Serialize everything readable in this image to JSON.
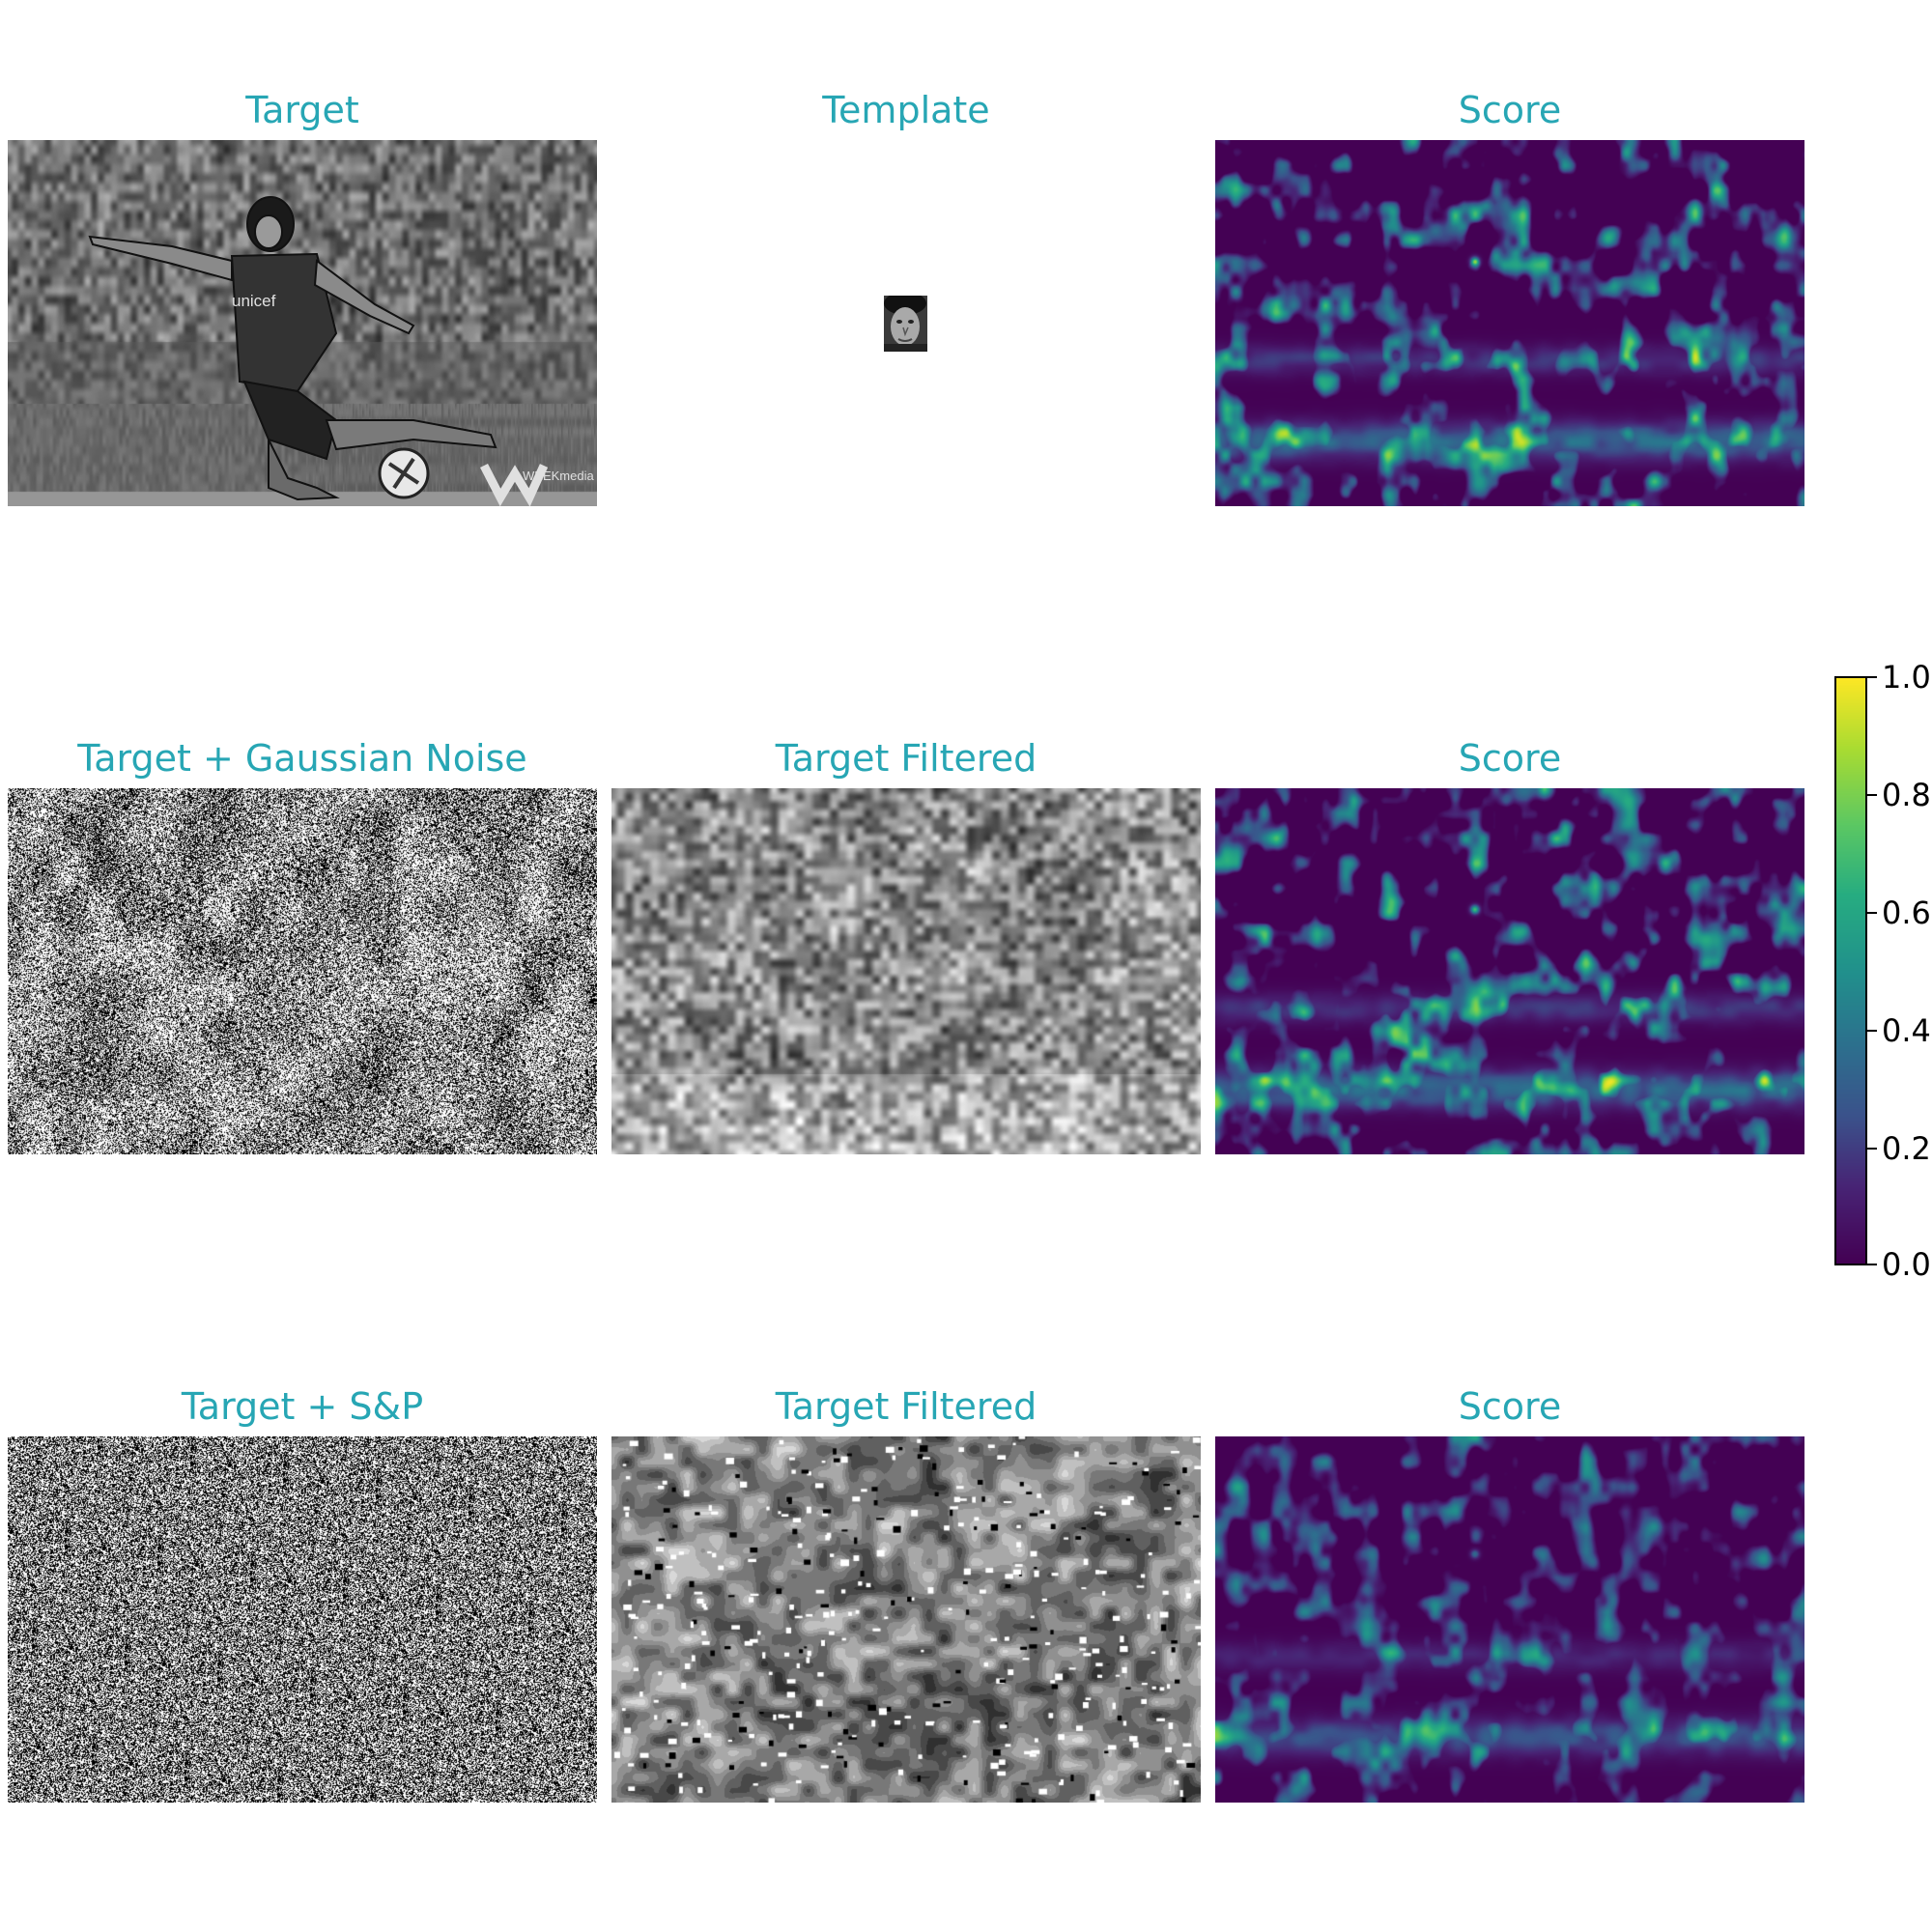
{
  "rows": [
    {
      "titles": [
        "Target",
        "Template",
        "Score"
      ]
    },
    {
      "titles": [
        "Target + Gaussian Noise",
        "Target Filtered",
        "Score"
      ]
    },
    {
      "titles": [
        "Target + S&P",
        "Target Filtered",
        "Score"
      ]
    }
  ],
  "colorbar": {
    "ticks": [
      "1.0",
      "0.8",
      "0.6",
      "0.4",
      "0.2",
      "0.0"
    ],
    "colormap": "viridis",
    "range": [
      0.0,
      1.0
    ]
  },
  "photo_text": {
    "shirt": "unicef",
    "watermark": "WEEKmedia"
  },
  "colors": {
    "title": "#27a6b4",
    "viridis_low": "#440154",
    "viridis_mid": "#21918c",
    "viridis_high": "#fde725"
  }
}
